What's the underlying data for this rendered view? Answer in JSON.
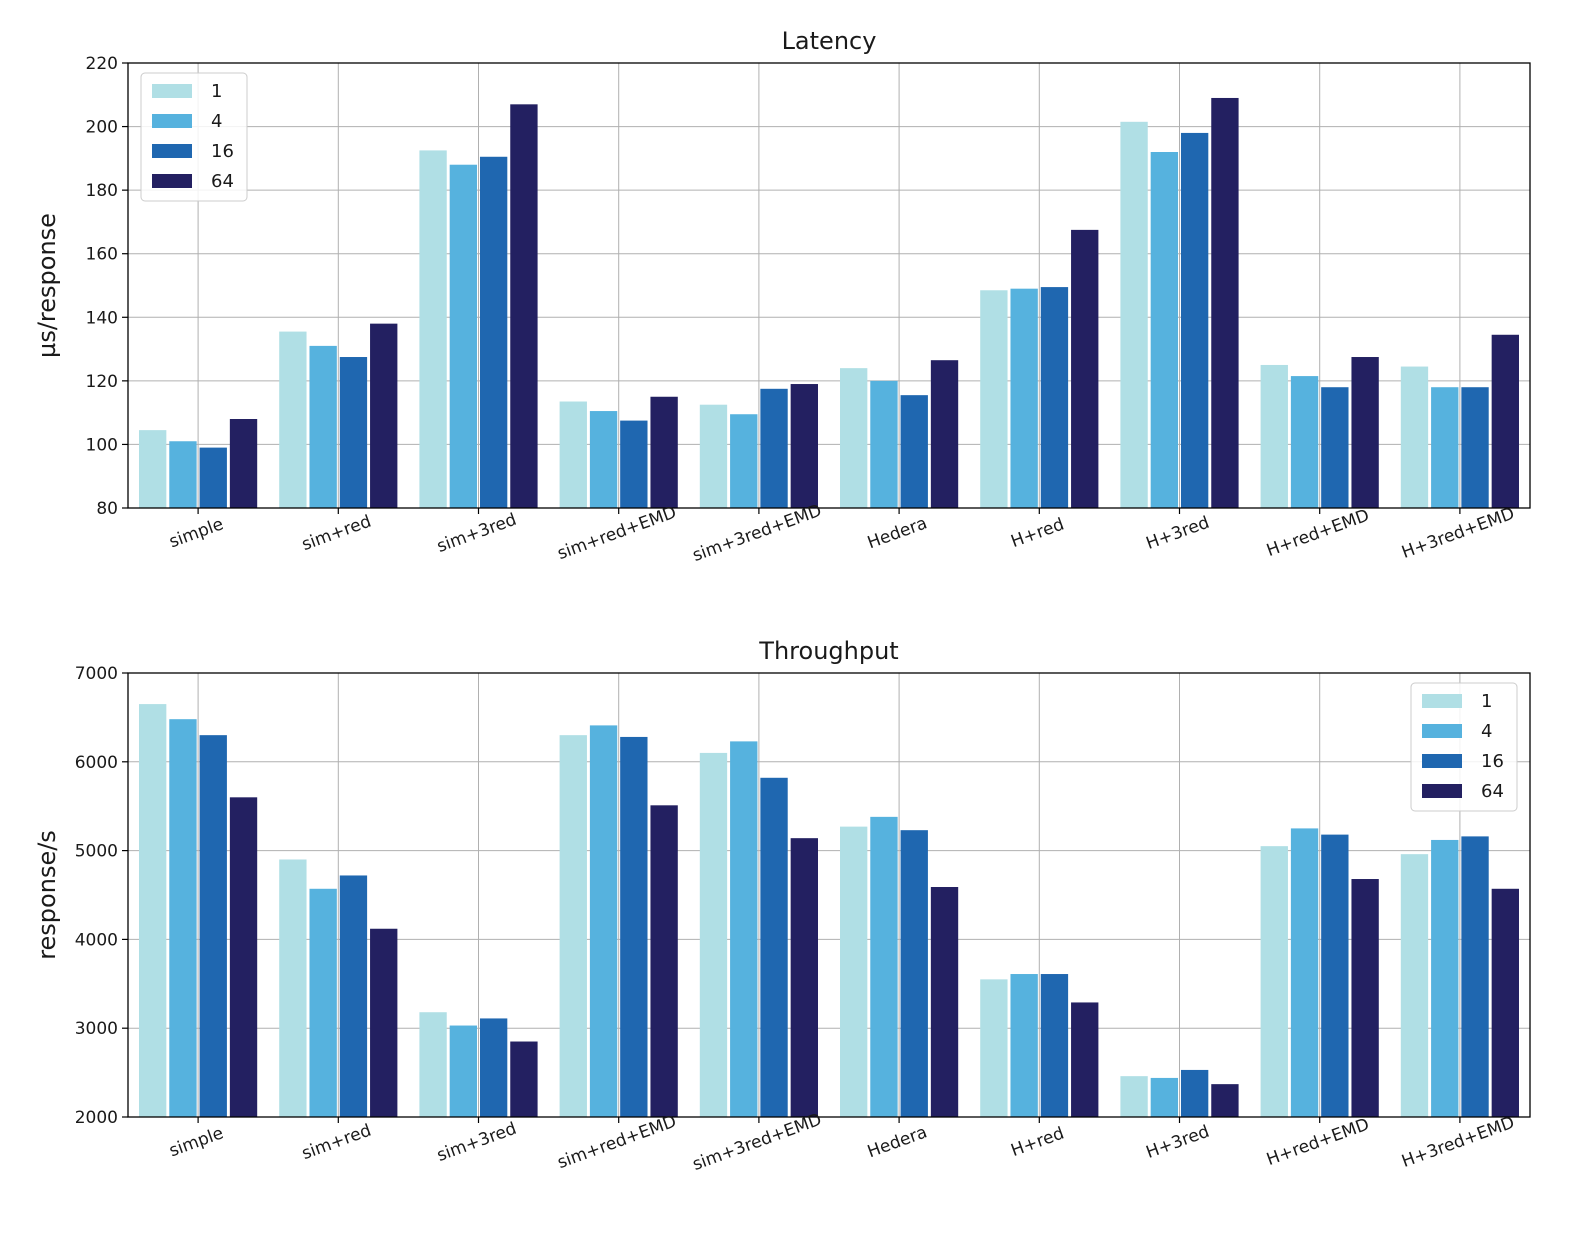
{
  "chart_data": [
    {
      "type": "bar",
      "title": "Latency",
      "xlabel": "",
      "ylabel": "µs/response",
      "ylim": [
        80,
        220
      ],
      "yticks": [
        80,
        100,
        120,
        140,
        160,
        180,
        200,
        220
      ],
      "grid": true,
      "legend_position": "top-left",
      "categories": [
        "simple",
        "sim+red",
        "sim+3red",
        "sim+red+EMD",
        "sim+3red+EMD",
        "Hedera",
        "H+red",
        "H+3red",
        "H+red+EMD",
        "H+3red+EMD"
      ],
      "series": [
        {
          "name": "1",
          "color": "#b0dfe5",
          "values": [
            104.5,
            135.5,
            192.5,
            113.5,
            112.5,
            124,
            148.5,
            201.5,
            125,
            124.5
          ]
        },
        {
          "name": "4",
          "color": "#56b2de",
          "values": [
            101,
            131,
            188,
            110.5,
            109.5,
            120,
            149,
            192,
            121.5,
            118
          ]
        },
        {
          "name": "16",
          "color": "#1f67b0",
          "values": [
            99,
            127.5,
            190.5,
            107.5,
            117.5,
            115.5,
            149.5,
            198,
            118,
            118
          ]
        },
        {
          "name": "64",
          "color": "#232061",
          "values": [
            108,
            138,
            207,
            115,
            119,
            126.5,
            167.5,
            209,
            127.5,
            134.5
          ]
        }
      ]
    },
    {
      "type": "bar",
      "title": "Throughput",
      "xlabel": "",
      "ylabel": "response/s",
      "ylim": [
        2000,
        7000
      ],
      "yticks": [
        2000,
        3000,
        4000,
        5000,
        6000,
        7000
      ],
      "grid": true,
      "legend_position": "top-right",
      "categories": [
        "simple",
        "sim+red",
        "sim+3red",
        "sim+red+EMD",
        "sim+3red+EMD",
        "Hedera",
        "H+red",
        "H+3red",
        "H+red+EMD",
        "H+3red+EMD"
      ],
      "series": [
        {
          "name": "1",
          "color": "#b0dfe5",
          "values": [
            6650,
            4900,
            3180,
            6300,
            6100,
            5270,
            3550,
            2460,
            5050,
            4960
          ]
        },
        {
          "name": "4",
          "color": "#56b2de",
          "values": [
            6480,
            4570,
            3030,
            6410,
            6230,
            5380,
            3610,
            2440,
            5250,
            5120
          ]
        },
        {
          "name": "16",
          "color": "#1f67b0",
          "values": [
            6300,
            4720,
            3110,
            6280,
            5820,
            5230,
            3610,
            2530,
            5180,
            5160
          ]
        },
        {
          "name": "64",
          "color": "#232061",
          "values": [
            5600,
            4120,
            2850,
            5510,
            5140,
            4590,
            3290,
            2370,
            4680,
            4570
          ]
        }
      ]
    }
  ]
}
